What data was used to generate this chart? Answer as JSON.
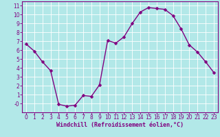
{
  "x": [
    0,
    1,
    2,
    3,
    4,
    5,
    6,
    7,
    8,
    9,
    10,
    11,
    12,
    13,
    14,
    15,
    16,
    17,
    18,
    19,
    20,
    21,
    22,
    23
  ],
  "y": [
    6.7,
    5.9,
    4.7,
    3.7,
    -0.1,
    -0.3,
    -0.2,
    0.9,
    0.8,
    2.1,
    7.1,
    6.8,
    7.5,
    9.0,
    10.3,
    10.8,
    10.7,
    10.6,
    9.9,
    8.4,
    6.6,
    5.8,
    4.7,
    3.5
  ],
  "line_color": "#800080",
  "marker_color": "#800080",
  "bg_color": "#b2e8e8",
  "grid_color": "#ffffff",
  "xlabel": "Windchill (Refroidissement éolien,°C)",
  "xlim": [
    -0.5,
    23.5
  ],
  "ylim": [
    -1.0,
    11.5
  ],
  "yticks": [
    0,
    1,
    2,
    3,
    4,
    5,
    6,
    7,
    8,
    9,
    10,
    11
  ],
  "xticks": [
    0,
    1,
    2,
    3,
    4,
    5,
    6,
    7,
    8,
    9,
    10,
    11,
    12,
    13,
    14,
    15,
    16,
    17,
    18,
    19,
    20,
    21,
    22,
    23
  ],
  "xlabel_color": "#800080",
  "tick_color": "#800080",
  "border_color": "#800080",
  "marker_size": 2.5,
  "line_width": 1.0,
  "tick_fontsize": 5.5,
  "xlabel_fontsize": 6.0
}
